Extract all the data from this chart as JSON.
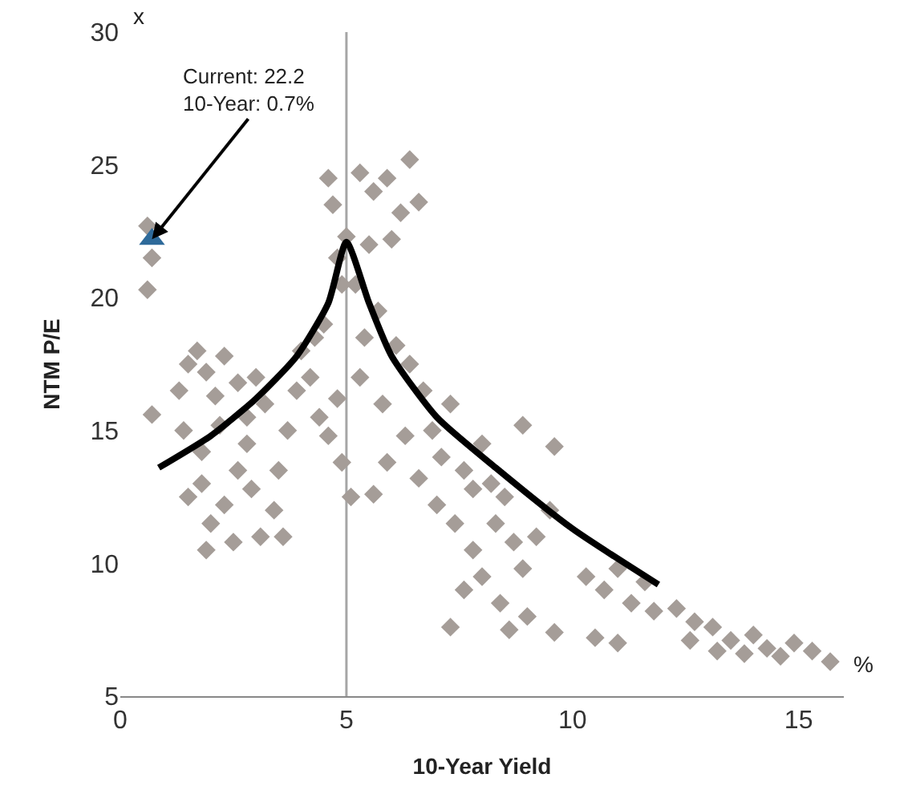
{
  "chart_data": {
    "type": "scatter",
    "xlabel": "10-Year Yield",
    "ylabel": "NTM P/E",
    "xlim": [
      0,
      16
    ],
    "xticks": [
      0,
      5,
      10,
      15
    ],
    "ylim": [
      5,
      30
    ],
    "yticks": [
      5,
      10,
      15,
      20,
      25,
      30
    ],
    "grid": false,
    "ref_lines": [
      {
        "axis": "x",
        "value": 5,
        "color": "#a6a6a6"
      }
    ],
    "annotations": [
      {
        "text": "Current: 22.2\n10-Year: 0.7%",
        "x": 0.7,
        "y": 22.2
      },
      "x",
      "%"
    ],
    "series": [
      {
        "color": "#a59d98",
        "marker": "diamond",
        "x": [
          0.6,
          0.7,
          0.6,
          0.7,
          1.3,
          1.5,
          1.7,
          1.9,
          2.1,
          2.3,
          1.4,
          1.8,
          2.2,
          2.6,
          2.8,
          3.0,
          3.2,
          1.5,
          1.8,
          2.0,
          2.3,
          2.6,
          2.9,
          3.1,
          3.4,
          1.9,
          2.5,
          2.8,
          3.5,
          3.7,
          3.9,
          4.0,
          4.2,
          4.4,
          4.6,
          4.8,
          4.5,
          4.3,
          4.9,
          4.8,
          4.6,
          4.7,
          5.0,
          5.3,
          5.5,
          5.2,
          5.6,
          5.9,
          6.2,
          6.4,
          6.6,
          6.0,
          4.9,
          5.1,
          3.6,
          5.4,
          5.7,
          5.3,
          5.8,
          6.1,
          6.4,
          6.7,
          6.9,
          6.3,
          5.9,
          5.6,
          6.6,
          7.1,
          7.3,
          7.0,
          7.4,
          7.6,
          7.8,
          8.0,
          8.2,
          7.8,
          8.3,
          8.5,
          8.7,
          8.0,
          8.4,
          7.6,
          8.9,
          9.2,
          9.5,
          9.0,
          8.6,
          7.3,
          9.6,
          10.3,
          10.7,
          11.0,
          11.3,
          11.6,
          10.5,
          11.0,
          11.8,
          12.3,
          12.7,
          13.1,
          13.5,
          13.2,
          12.6,
          14.0,
          14.3,
          14.6,
          14.9,
          13.8,
          15.3,
          15.7,
          9.6,
          8.9
        ],
        "values": [
          22.7,
          21.5,
          20.3,
          15.6,
          16.5,
          17.5,
          18.0,
          17.2,
          16.3,
          17.8,
          15.0,
          14.2,
          15.2,
          16.8,
          15.5,
          17.0,
          16.0,
          12.5,
          13.0,
          11.5,
          12.2,
          13.5,
          12.8,
          11.0,
          12.0,
          10.5,
          10.8,
          14.5,
          13.5,
          15.0,
          16.5,
          18.0,
          17.0,
          15.5,
          14.8,
          16.2,
          19.0,
          18.5,
          20.5,
          21.5,
          24.5,
          23.5,
          22.3,
          24.7,
          22.0,
          20.5,
          24.0,
          24.5,
          23.2,
          25.2,
          23.6,
          22.2,
          13.8,
          12.5,
          11.0,
          18.5,
          19.5,
          17.0,
          16.0,
          18.2,
          17.5,
          16.5,
          15.0,
          14.8,
          13.8,
          12.6,
          13.2,
          14.0,
          16.0,
          12.2,
          11.5,
          13.5,
          12.8,
          14.5,
          13.0,
          10.5,
          11.5,
          12.5,
          10.8,
          9.5,
          8.5,
          9.0,
          9.8,
          11.0,
          12.0,
          8.0,
          7.5,
          7.6,
          7.4,
          9.5,
          9.0,
          9.8,
          8.5,
          9.3,
          7.2,
          7.0,
          8.2,
          8.3,
          7.8,
          7.6,
          7.1,
          6.7,
          7.1,
          7.3,
          6.8,
          6.5,
          7.0,
          6.6,
          6.7,
          6.3,
          14.4,
          15.2
        ]
      },
      {
        "type": "line",
        "color": "#000000",
        "marker": "none",
        "x": [
          0.85,
          2.0,
          3.0,
          3.9,
          4.6,
          5.0,
          5.5,
          6.0,
          7.0,
          8.3,
          10.0,
          11.9
        ],
        "values": [
          13.6,
          14.8,
          16.2,
          17.8,
          19.8,
          22.1,
          19.8,
          17.8,
          15.5,
          13.6,
          11.3,
          9.2
        ]
      },
      {
        "color": "#2e6a9a",
        "marker": "triangle",
        "x": [
          0.7
        ],
        "values": [
          22.2
        ]
      }
    ]
  }
}
